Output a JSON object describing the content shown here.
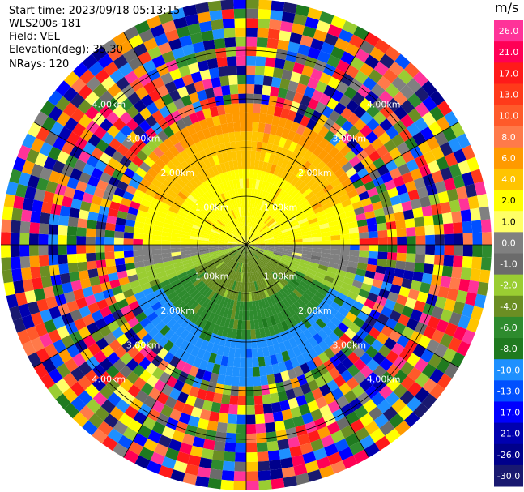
{
  "header": {
    "start_time": "Start time: 2023/09/18 05:13:15",
    "instrument": "WLS200s-181",
    "field": "Field: VEL",
    "elevation": "Elevation(deg): 35.30",
    "nrays": "NRays: 120"
  },
  "chart_data": {
    "type": "heatmap",
    "projection": "polar-ppi",
    "field": "VEL",
    "units": "m/s",
    "n_rays": 120,
    "range_rings": [
      "1.00km",
      "2.00km",
      "3.00km",
      "4.00km"
    ],
    "colorbar": {
      "unit": "m/s",
      "ticks": [
        "26.0",
        "21.0",
        "17.0",
        "13.0",
        "10.0",
        "8.0",
        "6.0",
        "4.0",
        "2.0",
        "1.0",
        "0.0",
        "-1.0",
        "-2.0",
        "-4.0",
        "-6.0",
        "-8.0",
        "-10.0",
        "-13.0",
        "-17.0",
        "-21.0",
        "-26.0",
        "-30.0"
      ],
      "colors": [
        "#ff3399",
        "#ff0055",
        "#ff1a1a",
        "#ff3a1a",
        "#ff5a2a",
        "#ff7a4a",
        "#ff9a00",
        "#ffc400",
        "#ffff00",
        "#ffff66",
        "#808080",
        "#6b6b6b",
        "#9acd32",
        "#6b8e23",
        "#2e8b2e",
        "#1f7a1f",
        "#1e90ff",
        "#0050ff",
        "#0000ff",
        "#0000b0",
        "#00008b",
        "#191970"
      ]
    }
  }
}
